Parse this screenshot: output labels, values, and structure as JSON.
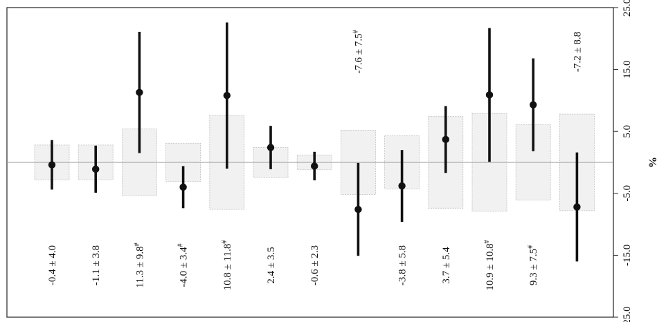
{
  "chart_data": {
    "type": "scatter",
    "orientation": "rotated-90",
    "x_axis": {
      "label": "%",
      "range": [
        -25,
        25
      ],
      "ticks": [
        -25,
        -15,
        -5,
        5,
        15,
        25
      ],
      "tick_labels": [
        "-25.0",
        "-15.0",
        "-5.0",
        "5.0",
        "15.0",
        "25.0"
      ],
      "reference_line": 0
    },
    "points": [
      {
        "mean": -0.4,
        "sd": 4.0,
        "band": 2.8,
        "label": "-0.4 ± 4.0",
        "marker": "",
        "label_side": "negative"
      },
      {
        "mean": -1.1,
        "sd": 3.8,
        "band": 2.8,
        "label": "-1.1 ± 3.8",
        "marker": "",
        "label_side": "negative"
      },
      {
        "mean": 11.3,
        "sd": 9.8,
        "band": 5.4,
        "label": "11.3 ± 9.8",
        "marker": "#",
        "label_side": "negative"
      },
      {
        "mean": -4.0,
        "sd": 3.4,
        "band": 3.1,
        "label": "-4.0 ± 3.4",
        "marker": "#",
        "label_side": "negative"
      },
      {
        "mean": 10.8,
        "sd": 11.8,
        "band": 7.6,
        "label": "10.8 ± 11.8",
        "marker": "#",
        "label_side": "negative"
      },
      {
        "mean": 2.4,
        "sd": 3.5,
        "band": 2.4,
        "label": "2.4 ± 3.5",
        "marker": "",
        "label_side": "negative"
      },
      {
        "mean": -0.6,
        "sd": 2.3,
        "band": 1.2,
        "label": "-0.6 ± 2.3",
        "marker": "",
        "label_side": "negative"
      },
      {
        "mean": -7.6,
        "sd": 7.5,
        "band": 5.2,
        "label": "-7.6 ± 7.5",
        "marker": "#",
        "label_side": "positive"
      },
      {
        "mean": -3.8,
        "sd": 5.8,
        "band": 4.3,
        "label": "-3.8 ± 5.8",
        "marker": "",
        "label_side": "negative"
      },
      {
        "mean": 3.7,
        "sd": 5.4,
        "band": 7.4,
        "label": "3.7 ± 5.4",
        "marker": "",
        "label_side": "negative"
      },
      {
        "mean": 10.9,
        "sd": 10.8,
        "band": 7.9,
        "label": "10.9 ± 10.8",
        "marker": "#",
        "label_side": "negative"
      },
      {
        "mean": 9.3,
        "sd": 7.5,
        "band": 6.1,
        "label": "9.3 ± 7.5",
        "marker": "#",
        "label_side": "negative"
      },
      {
        "mean": -7.2,
        "sd": 8.8,
        "band": 7.8,
        "label": "-7.2 ± 8.8",
        "marker": "",
        "label_side": "positive"
      }
    ],
    "grid": false,
    "colors": {
      "band_fill": "#f1f1f1",
      "band_stroke": "#bdbdbd",
      "mark": "#111111",
      "reference": "#9a9a9a"
    }
  }
}
